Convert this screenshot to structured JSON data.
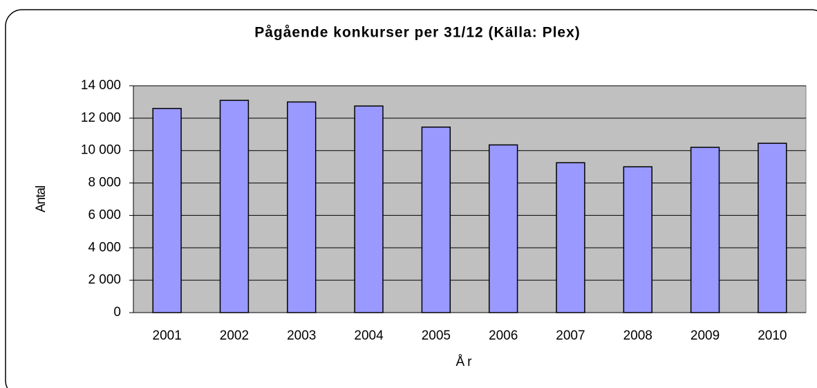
{
  "chart_data": {
    "type": "bar",
    "title": "Pågående konkurser per 31/12 (Källa: Plex)",
    "x_label": "År",
    "y_label": "Antal",
    "categories": [
      "2001",
      "2002",
      "2003",
      "2004",
      "2005",
      "2006",
      "2007",
      "2008",
      "2009",
      "2010"
    ],
    "values": [
      12600,
      13100,
      13000,
      12750,
      11450,
      10350,
      9250,
      9000,
      10200,
      10450
    ],
    "color": "#9999ff",
    "ylim": [
      0,
      14000
    ],
    "yticks": [
      0,
      {
        "value": 2000,
        "label": "2 000"
      },
      {
        "value": 4000,
        "label": "4 000"
      },
      {
        "value": 6000,
        "label": "6 000"
      },
      {
        "value": 8000,
        "label": "8 000"
      },
      {
        "value": 10000,
        "label": "10 000"
      },
      {
        "value": 12000,
        "label": "12 000"
      },
      {
        "value": 14000,
        "label": "14 000"
      }
    ],
    "grid": true
  }
}
